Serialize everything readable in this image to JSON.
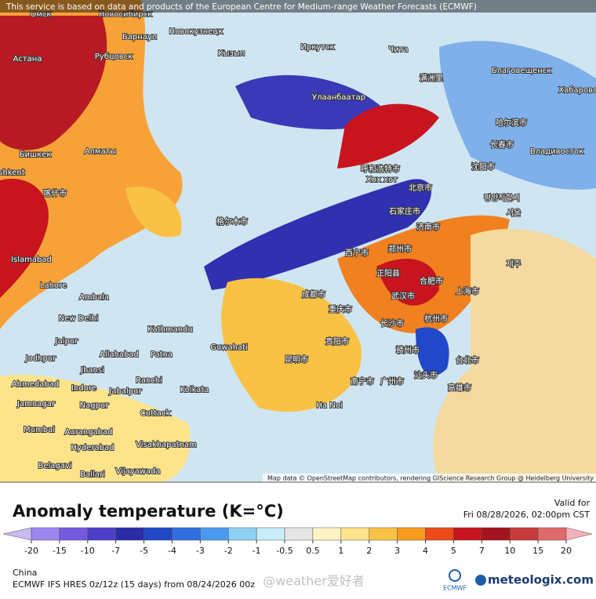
{
  "header": {
    "notice": "This service is based on data and products of the European Centre for Medium-range Weather Forecasts (ECMWF)",
    "attribution": "Map data © OpenStreetMap contributors, rendering GIScience Research Group @ Heidelberg University"
  },
  "map_labels": [
    "Омск",
    "Новосибирск",
    "Барнаул",
    "Новокузнецк",
    "Астана",
    "Рубцовск",
    "Кызыл",
    "Иркутск",
    "Чита",
    "Благовещенск",
    "Хабаровск",
    "Улаанбаатар",
    "满洲里",
    "哈尔滨市",
    "长春市",
    "Владивосток",
    "Бишкек",
    "Алматы",
    "shkent",
    "喀什市",
    "呼和浩特市",
    "Хөх хот",
    "北京市",
    "沈阳市",
    "평양직할시",
    "서울",
    "石家庄市",
    "济南市",
    "格尔木市",
    "西宁市",
    "郑州市",
    "正阳县",
    "合肥市",
    "上海市",
    "武汉市",
    "成都市",
    "重庆市",
    "长沙市",
    "杭州市",
    "贵阳市",
    "昆明市",
    "赣州市",
    "台北市",
    "高雄市",
    "广州市",
    "南宁市",
    "汕头市",
    "제주",
    "Islamabad",
    "Lahore",
    "Ambala",
    "New Delhi",
    "Kathmandu",
    "Jaipur",
    "Guwahati",
    "Allahabad",
    "Patna",
    "Jodhpur",
    "Jhansi",
    "Ranchi",
    "Ahmedabad",
    "Indore",
    "Jabalpur",
    "Kolkata",
    "Jamnagar",
    "Nagpur",
    "Cuttack",
    "Ha Noi",
    "Mumbai",
    "Aurangabad",
    "Hyderabad",
    "Visakhapatnam",
    "Belagavi",
    "Ballari",
    "Vijayawada"
  ],
  "legend": {
    "title": "Anomaly temperature (K=°C)",
    "ticks": [
      -20,
      -15,
      -10,
      -7,
      -5,
      -4,
      -3,
      -2,
      -1,
      -0.5,
      0.5,
      1,
      2,
      3,
      4,
      5,
      7,
      10,
      15,
      20
    ],
    "colors": [
      "#c9baf5",
      "#9b85f0",
      "#7358e0",
      "#4b3ec8",
      "#2c2ca8",
      "#2048c8",
      "#2f6fe0",
      "#4b9af0",
      "#8fd0f5",
      "#c8eefa",
      "#e6e6e6",
      "#fff3c4",
      "#fde38a",
      "#f9c245",
      "#f79a1e",
      "#ec4a17",
      "#c8141e",
      "#a3141e",
      "#c83a3a",
      "#e06a6a",
      "#f5b0b8"
    ]
  },
  "valid": {
    "label": "Valid for",
    "time": "Fri 08/28/2026, 02:00pm CST"
  },
  "footer": {
    "region": "China",
    "run": "ECMWF IFS HRES 0z/12z (15 days) from 08/24/2026 00z",
    "watermark": "@weather爱好者",
    "ecmwf": "ECMWF",
    "brand": "meteologix.com"
  }
}
